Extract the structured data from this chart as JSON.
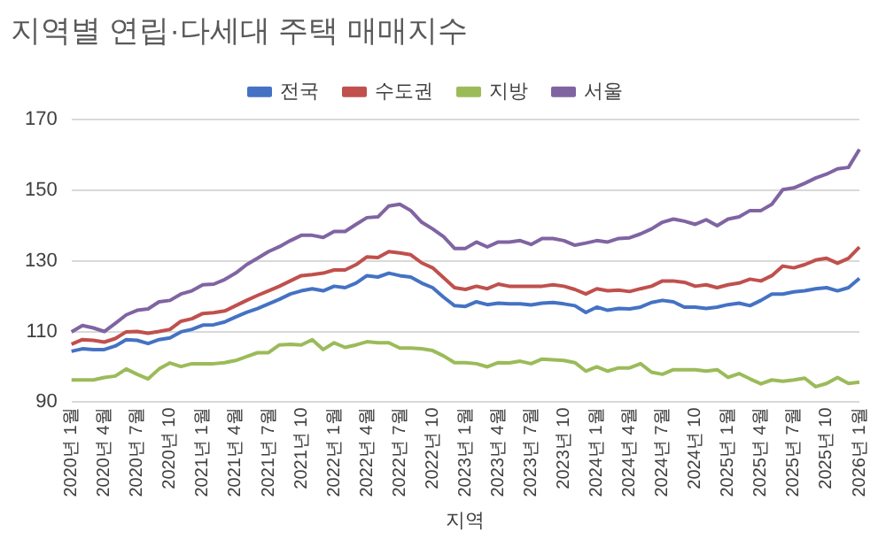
{
  "chart_data": {
    "type": "line",
    "title": "지역별 연립·다세대 주택 매매지수",
    "xlabel": "지역",
    "categories": [
      "2020년 1월",
      null,
      null,
      "2020년 4월",
      null,
      null,
      "2020년 7월",
      null,
      null,
      "2020년 10",
      null,
      null,
      "2021년 1월",
      null,
      null,
      "2021년 4월",
      null,
      null,
      "2021년 7월",
      null,
      null,
      "2021년 10",
      null,
      null,
      "2022년 1월",
      null,
      null,
      "2022년 4월",
      null,
      null,
      "2022년 7월",
      null,
      null,
      "2022년 10",
      null,
      null,
      "2023년 1월",
      null,
      null,
      "2023년 4월",
      null,
      null,
      "2023년 7월",
      null,
      null,
      "2023년 10",
      null,
      null,
      "2024년 1월",
      null,
      null,
      "2024년 4월",
      null,
      null,
      "2024년 7월",
      null,
      null,
      "2024년 10",
      null,
      null,
      "2025년 1월",
      null,
      null,
      "2025년 4월",
      null,
      null,
      "2025년 7월",
      null,
      null,
      "2025년 10",
      null,
      null,
      "2026년 1월"
    ],
    "series": [
      {
        "name": "전국",
        "color": "#4472c4",
        "values": [
          104.4,
          105.1,
          104.9,
          104.9,
          105.9,
          107.7,
          107.5,
          106.6,
          107.7,
          108.2,
          109.9,
          110.6,
          111.8,
          111.9,
          112.7,
          114.1,
          115.4,
          116.5,
          117.8,
          119.1,
          120.6,
          121.5,
          122.1,
          121.5,
          122.8,
          122.4,
          123.7,
          125.8,
          125.4,
          126.5,
          125.8,
          125.4,
          123.7,
          122.4,
          119.7,
          117.3,
          117.1,
          118.4,
          117.6,
          118,
          117.8,
          117.8,
          117.5,
          118,
          118.2,
          117.8,
          117.3,
          115.4,
          116.9,
          116,
          116.5,
          116.4,
          116.9,
          118.2,
          118.8,
          118.4,
          116.9,
          116.9,
          116.5,
          116.9,
          117.6,
          118,
          117.3,
          118.8,
          120.6,
          120.6,
          121.2,
          121.5,
          122.1,
          122.4,
          121.5,
          122.4,
          125
        ]
      },
      {
        "name": "수도권",
        "color": "#c0504d",
        "values": [
          106.4,
          107.7,
          107.5,
          107,
          108,
          109.9,
          110,
          109.5,
          110,
          110.6,
          112.9,
          113.6,
          115.1,
          115.3,
          115.8,
          117.3,
          118.8,
          120.2,
          121.5,
          122.8,
          124.3,
          125.8,
          126.1,
          126.5,
          127.4,
          127.4,
          128.9,
          131.1,
          130.9,
          132.6,
          132.2,
          131.7,
          129.4,
          128,
          125.2,
          122.4,
          121.9,
          122.8,
          122.1,
          123.4,
          122.8,
          122.8,
          122.8,
          122.8,
          123.2,
          122.8,
          121.9,
          120.6,
          122.1,
          121.5,
          121.7,
          121.3,
          122.1,
          122.8,
          124.3,
          124.3,
          123.9,
          122.8,
          123.2,
          122.4,
          123.2,
          123.7,
          124.8,
          124.3,
          125.8,
          128.5,
          128,
          128.9,
          130.2,
          130.7,
          129.3,
          130.7,
          133.9
        ]
      },
      {
        "name": "지방",
        "color": "#9bbb59",
        "values": [
          96.3,
          96.3,
          96.3,
          97,
          97.4,
          99.4,
          97.9,
          96.6,
          99.4,
          101.1,
          100.1,
          100.9,
          100.9,
          100.9,
          101.2,
          101.8,
          102.9,
          104,
          104,
          106.2,
          106.4,
          106.2,
          107.7,
          104.9,
          106.8,
          105.5,
          106.2,
          107.1,
          106.8,
          106.8,
          105.3,
          105.3,
          105.1,
          104.6,
          103.1,
          101.2,
          101.2,
          100.9,
          100,
          101.2,
          101.1,
          101.6,
          100.9,
          102.2,
          102,
          101.8,
          101.2,
          98.8,
          100,
          98.8,
          99.7,
          99.7,
          100.9,
          98.5,
          97.9,
          99.2,
          99.2,
          99.2,
          98.8,
          99.2,
          97,
          98.1,
          96.6,
          95.2,
          96.3,
          95.9,
          96.3,
          96.8,
          94.4,
          95.3,
          97,
          95.3,
          95.7
        ]
      },
      {
        "name": "서울",
        "color": "#8064a2",
        "values": [
          109.9,
          111.7,
          111,
          110,
          112.3,
          114.7,
          116,
          116.4,
          118.4,
          118.8,
          120.6,
          121.5,
          123.2,
          123.4,
          124.7,
          126.5,
          128.9,
          130.7,
          132.6,
          134,
          135.7,
          137.2,
          137.2,
          136.6,
          138.3,
          138.3,
          140.3,
          142.2,
          142.4,
          145.5,
          146,
          144.2,
          140.9,
          139,
          136.8,
          133.5,
          133.5,
          135.3,
          133.9,
          135.3,
          135.3,
          135.7,
          134.6,
          136.3,
          136.3,
          135.7,
          134.4,
          135,
          135.7,
          135.3,
          136.3,
          136.5,
          137.6,
          139,
          140.9,
          141.8,
          141.2,
          140.3,
          141.6,
          139.9,
          141.8,
          142.4,
          144.2,
          144.2,
          146,
          150.1,
          150.6,
          151.9,
          153.4,
          154.5,
          156,
          156.4,
          161.5
        ]
      }
    ],
    "ylim": [
      90,
      170
    ],
    "yticks": [
      90,
      110,
      130,
      150,
      170
    ],
    "grid": "y",
    "legend": "top",
    "marker": "none",
    "line_style": "solid"
  }
}
